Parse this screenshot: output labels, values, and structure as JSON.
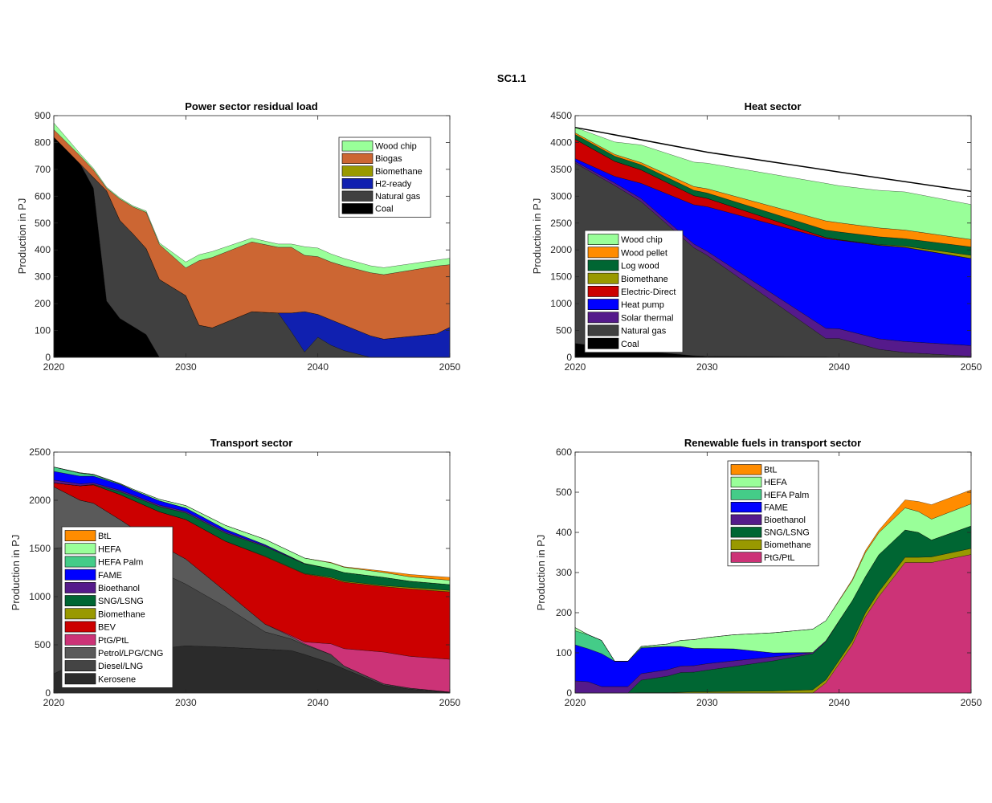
{
  "figure_title": "SC1.1",
  "chart_data": [
    {
      "id": "power",
      "type": "area",
      "title": "Power sector residual load",
      "xlabel": "",
      "ylabel": "Production in PJ",
      "xlim": [
        2020,
        2050
      ],
      "ylim": [
        0,
        900
      ],
      "xticks": [
        2020,
        2030,
        2040,
        2050
      ],
      "yticks": [
        0,
        100,
        200,
        300,
        400,
        500,
        600,
        700,
        800,
        900
      ],
      "grid": false,
      "legend_position": "top-right",
      "legend_order": [
        "Wood chip",
        "Biogas",
        "Biomethane",
        "H2-ready",
        "Natural gas",
        "Coal"
      ],
      "x": [
        2020,
        2022,
        2023,
        2024,
        2025,
        2026,
        2027,
        2028,
        2030,
        2031,
        2032,
        2035,
        2037,
        2038,
        2039,
        2040,
        2041,
        2042,
        2044,
        2045,
        2049,
        2050
      ],
      "series": [
        {
          "name": "Coal",
          "color": "#000000",
          "values": [
            820,
            720,
            630,
            210,
            145,
            115,
            85,
            0,
            0,
            0,
            0,
            0,
            0,
            0,
            0,
            0,
            0,
            0,
            0,
            0,
            0,
            0
          ]
        },
        {
          "name": "Natural gas",
          "color": "#404040",
          "values": [
            0,
            0,
            40,
            410,
            365,
            345,
            320,
            290,
            230,
            120,
            110,
            170,
            165,
            95,
            20,
            75,
            45,
            25,
            0,
            0,
            0,
            0
          ]
        },
        {
          "name": "H2-ready",
          "color": "#1020B0",
          "values": [
            0,
            0,
            0,
            0,
            0,
            0,
            0,
            0,
            0,
            0,
            0,
            0,
            0,
            70,
            150,
            85,
            95,
            95,
            80,
            68,
            88,
            112
          ]
        },
        {
          "name": "Biomethane",
          "color": "#999900",
          "values": [
            0,
            0,
            0,
            0,
            0,
            0,
            0,
            0,
            0,
            0,
            0,
            0,
            0,
            0,
            0,
            0,
            0,
            0,
            0,
            0,
            0,
            0
          ]
        },
        {
          "name": "Biogas",
          "color": "#CC6633",
          "values": [
            28,
            30,
            28,
            10,
            80,
            100,
            135,
            130,
            103,
            240,
            262,
            260,
            245,
            245,
            210,
            215,
            215,
            220,
            235,
            240,
            252,
            233
          ]
        },
        {
          "name": "Wood chip",
          "color": "#99FF99",
          "values": [
            25,
            8,
            6,
            4,
            4,
            4,
            5,
            6,
            22,
            22,
            22,
            14,
            12,
            12,
            32,
            32,
            30,
            28,
            26,
            26,
            22,
            24
          ]
        }
      ]
    },
    {
      "id": "heat",
      "type": "area",
      "title": "Heat sector",
      "xlabel": "",
      "ylabel": "Production in PJ",
      "xlim": [
        2020,
        2050
      ],
      "ylim": [
        0,
        4500
      ],
      "xticks": [
        2020,
        2030,
        2040,
        2050
      ],
      "yticks": [
        0,
        500,
        1000,
        1500,
        2000,
        2500,
        3000,
        3500,
        4000,
        4500
      ],
      "grid": false,
      "legend_position": "bottom-left",
      "legend_order": [
        "Wood chip",
        "Wood pellet",
        "Log wood",
        "Biomethane",
        "Electric-Direct",
        "Heat pump",
        "Solar thermal",
        "Natural gas",
        "Coal"
      ],
      "demand_line": {
        "x": [
          2020,
          2030,
          2040,
          2050
        ],
        "values": [
          4280,
          3820,
          3450,
          3090
        ],
        "color": "#000000"
      },
      "x": [
        2020,
        2023,
        2025,
        2029,
        2030,
        2039,
        2040,
        2043,
        2045,
        2050
      ],
      "series": [
        {
          "name": "Coal",
          "color": "#000000",
          "values": [
            260,
            170,
            120,
            30,
            20,
            10,
            5,
            5,
            5,
            5
          ]
        },
        {
          "name": "Natural gas",
          "color": "#404040",
          "values": [
            3360,
            3030,
            2780,
            2010,
            1880,
            340,
            345,
            145,
            85,
            15
          ]
        },
        {
          "name": "Solar thermal",
          "color": "#551A8B",
          "values": [
            30,
            45,
            55,
            70,
            75,
            190,
            180,
            195,
            205,
            200
          ]
        },
        {
          "name": "Heat pump",
          "color": "#0000FF",
          "values": [
            50,
            125,
            285,
            730,
            830,
            1670,
            1650,
            1740,
            1750,
            1620
          ]
        },
        {
          "name": "Electric-Direct",
          "color": "#CC0000",
          "values": [
            360,
            280,
            250,
            170,
            155,
            20,
            10,
            5,
            5,
            0
          ]
        },
        {
          "name": "Biomethane",
          "color": "#999900",
          "values": [
            0,
            0,
            0,
            0,
            0,
            0,
            0,
            10,
            20,
            60
          ]
        },
        {
          "name": "Log wood",
          "color": "#006633",
          "values": [
            90,
            95,
            95,
            100,
            100,
            140,
            145,
            145,
            140,
            155
          ]
        },
        {
          "name": "Wood pellet",
          "color": "#FF8C00",
          "values": [
            30,
            35,
            40,
            70,
            80,
            170,
            170,
            165,
            160,
            140
          ]
        },
        {
          "name": "Wood chip",
          "color": "#99FF99",
          "values": [
            100,
            230,
            330,
            455,
            475,
            700,
            690,
            700,
            710,
            650
          ]
        }
      ]
    },
    {
      "id": "transport",
      "type": "area",
      "title": "Transport sector",
      "xlabel": "",
      "ylabel": "Production in PJ",
      "xlim": [
        2020,
        2050
      ],
      "ylim": [
        0,
        2500
      ],
      "xticks": [
        2020,
        2030,
        2040,
        2050
      ],
      "yticks": [
        0,
        500,
        1000,
        1500,
        2000,
        2500
      ],
      "grid": false,
      "legend_position": "bottom-left",
      "legend_order": [
        "BtL",
        "HEFA",
        "HEFA Palm",
        "FAME",
        "Bioethanol",
        "SNG/LSNG",
        "Biomethane",
        "BEV",
        "PtG/PtL",
        "Petrol/LPG/CNG",
        "Diesel/LNG",
        "Kerosene"
      ],
      "x": [
        2020,
        2022,
        2023,
        2025,
        2026,
        2028,
        2030,
        2033,
        2036,
        2038,
        2039,
        2041,
        2042,
        2045,
        2047,
        2050
      ],
      "series": [
        {
          "name": "Kerosene",
          "color": "#2B2B2B",
          "values": [
            200,
            330,
            380,
            420,
            440,
            460,
            490,
            475,
            455,
            440,
            400,
            310,
            250,
            80,
            40,
            5
          ]
        },
        {
          "name": "Diesel/LNG",
          "color": "#444444",
          "values": [
            1300,
            1200,
            1150,
            1010,
            940,
            800,
            640,
            420,
            180,
            120,
            100,
            90,
            30,
            15,
            10,
            5
          ]
        },
        {
          "name": "Petrol/LPG/CNG",
          "color": "#5A5A5A",
          "values": [
            640,
            470,
            440,
            370,
            330,
            280,
            260,
            160,
            80,
            25,
            10,
            0,
            0,
            0,
            0,
            0
          ]
        },
        {
          "name": "PtG/PtL",
          "color": "#CC3377",
          "values": [
            0,
            0,
            0,
            0,
            0,
            0,
            0,
            0,
            0,
            10,
            20,
            110,
            180,
            330,
            330,
            340
          ]
        },
        {
          "name": "BEV",
          "color": "#CC0000",
          "values": [
            40,
            150,
            190,
            260,
            290,
            340,
            410,
            520,
            700,
            700,
            705,
            680,
            690,
            680,
            700,
            700
          ]
        },
        {
          "name": "Biomethane",
          "color": "#999900",
          "values": [
            0,
            0,
            0,
            0,
            0,
            0,
            0,
            0,
            5,
            5,
            5,
            10,
            10,
            10,
            15,
            15
          ]
        },
        {
          "name": "SNG/LSNG",
          "color": "#006633",
          "values": [
            0,
            0,
            5,
            30,
            40,
            55,
            70,
            85,
            100,
            100,
            100,
            90,
            90,
            85,
            65,
            60
          ]
        },
        {
          "name": "Bioethanol",
          "color": "#551A8B",
          "values": [
            30,
            20,
            15,
            15,
            15,
            15,
            15,
            15,
            10,
            5,
            5,
            0,
            0,
            0,
            0,
            0
          ]
        },
        {
          "name": "FAME",
          "color": "#0000FF",
          "values": [
            90,
            80,
            70,
            60,
            50,
            45,
            35,
            25,
            10,
            5,
            0,
            0,
            0,
            0,
            0,
            0
          ]
        },
        {
          "name": "HEFA Palm",
          "color": "#44CC88",
          "values": [
            45,
            30,
            15,
            5,
            0,
            0,
            0,
            0,
            0,
            0,
            0,
            0,
            0,
            0,
            0,
            0
          ]
        },
        {
          "name": "HEFA",
          "color": "#99FF99",
          "values": [
            0,
            5,
            5,
            5,
            10,
            15,
            25,
            40,
            55,
            55,
            55,
            60,
            55,
            50,
            45,
            45
          ]
        },
        {
          "name": "BtL",
          "color": "#FF8C00",
          "values": [
            0,
            0,
            0,
            0,
            0,
            0,
            0,
            0,
            0,
            0,
            0,
            5,
            5,
            15,
            25,
            30
          ]
        }
      ]
    },
    {
      "id": "renewable",
      "type": "area",
      "title": "Renewable fuels in transport sector",
      "xlabel": "",
      "ylabel": "Production in PJ",
      "xlim": [
        2020,
        2050
      ],
      "ylim": [
        0,
        600
      ],
      "xticks": [
        2020,
        2030,
        2040,
        2050
      ],
      "yticks": [
        0,
        100,
        200,
        300,
        400,
        500,
        600
      ],
      "grid": false,
      "legend_position": "top-center",
      "legend_order": [
        "BtL",
        "HEFA",
        "HEFA Palm",
        "FAME",
        "Bioethanol",
        "SNG/LSNG",
        "Biomethane",
        "PtG/PtL"
      ],
      "x": [
        2020,
        2021,
        2022,
        2023,
        2024,
        2025,
        2027,
        2028,
        2029,
        2030,
        2032,
        2035,
        2038,
        2039,
        2041,
        2042,
        2043,
        2045,
        2046,
        2047,
        2050
      ],
      "series": [
        {
          "name": "PtG/PtL",
          "color": "#CC3377",
          "values": [
            0,
            0,
            0,
            0,
            0,
            0,
            0,
            0,
            0,
            0,
            0,
            0,
            0,
            25,
            120,
            190,
            240,
            325,
            325,
            325,
            345
          ]
        },
        {
          "name": "Biomethane",
          "color": "#999900",
          "values": [
            0,
            0,
            0,
            0,
            0,
            1,
            1,
            2,
            3,
            3,
            4,
            5,
            8,
            8,
            10,
            10,
            12,
            13,
            13,
            14,
            15
          ]
        },
        {
          "name": "SNG/LSNG",
          "color": "#006633",
          "values": [
            0,
            0,
            0,
            0,
            0,
            31,
            41,
            49,
            49,
            54,
            62,
            75,
            90,
            95,
            100,
            90,
            92,
            68,
            62,
            42,
            56
          ]
        },
        {
          "name": "Bioethanol",
          "color": "#551A8B",
          "values": [
            30,
            28,
            16,
            16,
            16,
            16,
            16,
            16,
            16,
            16,
            14,
            10,
            3,
            2,
            0,
            0,
            0,
            0,
            0,
            0,
            0
          ]
        },
        {
          "name": "FAME",
          "color": "#0000FF",
          "values": [
            90,
            82,
            82,
            63,
            63,
            64,
            58,
            49,
            43,
            38,
            30,
            10,
            0,
            0,
            0,
            0,
            0,
            0,
            0,
            0,
            0
          ]
        },
        {
          "name": "HEFA Palm",
          "color": "#44CC88",
          "values": [
            35,
            35,
            33,
            0,
            0,
            2,
            0,
            0,
            0,
            0,
            0,
            0,
            0,
            0,
            0,
            0,
            0,
            0,
            0,
            0,
            0
          ]
        },
        {
          "name": "HEFA",
          "color": "#99FF99",
          "values": [
            8,
            0,
            0,
            0,
            0,
            2,
            6,
            15,
            22,
            27,
            35,
            50,
            58,
            50,
            50,
            60,
            55,
            55,
            52,
            52,
            55
          ]
        },
        {
          "name": "BtL",
          "color": "#FF8C00",
          "values": [
            0,
            0,
            0,
            0,
            0,
            0,
            0,
            0,
            0,
            0,
            0,
            0,
            0,
            0,
            3,
            5,
            6,
            20,
            25,
            36,
            35
          ]
        }
      ]
    }
  ]
}
